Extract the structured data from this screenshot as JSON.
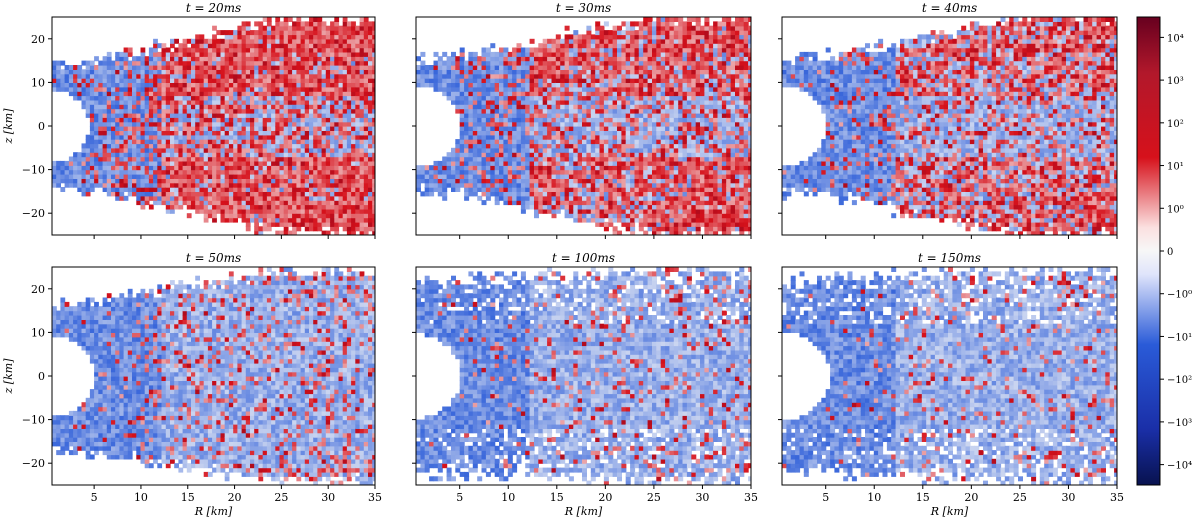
{
  "chart_data": [
    {
      "type": "heatmap",
      "title": "t = 20ms",
      "xlabel": "",
      "ylabel": "z [km]",
      "xlim": [
        0.5,
        35
      ],
      "ylim": [
        -25,
        25
      ],
      "xticks": [
        5,
        10,
        15,
        20,
        25,
        30,
        35
      ],
      "yticks": [
        20,
        10,
        0,
        -10,
        -20
      ],
      "ytick_labels": [
        "20",
        "10",
        "0",
        "−10",
        "−20"
      ],
      "show_ytick_labels": true,
      "show_xtick_labels": false,
      "pattern": {
        "core_radius": 4.5,
        "outer_extent_inner": 14,
        "outer_extent_outer": 24.5,
        "red_fraction": 0.55,
        "red_lobe": true
      }
    },
    {
      "type": "heatmap",
      "title": "t = 30ms",
      "xlabel": "",
      "ylabel": "",
      "xlim": [
        0.5,
        35
      ],
      "ylim": [
        -25,
        25
      ],
      "xticks": [
        5,
        10,
        15,
        20,
        25,
        30,
        35
      ],
      "yticks": [
        20,
        10,
        0,
        -10,
        -20
      ],
      "ytick_labels": [
        "20",
        "10",
        "0",
        "−10",
        "−20"
      ],
      "show_ytick_labels": false,
      "show_xtick_labels": false,
      "pattern": {
        "core_radius": 5.0,
        "outer_extent_inner": 15,
        "outer_extent_outer": 25,
        "red_fraction": 0.4,
        "red_lobe": true
      }
    },
    {
      "type": "heatmap",
      "title": "t = 40ms",
      "xlabel": "",
      "ylabel": "",
      "xlim": [
        0.5,
        35
      ],
      "ylim": [
        -25,
        25
      ],
      "xticks": [
        5,
        10,
        15,
        20,
        25,
        30,
        35
      ],
      "yticks": [
        20,
        10,
        0,
        -10,
        -20
      ],
      "ytick_labels": [
        "20",
        "10",
        "0",
        "−10",
        "−20"
      ],
      "show_ytick_labels": false,
      "show_xtick_labels": false,
      "pattern": {
        "core_radius": 5.0,
        "outer_extent_inner": 15,
        "outer_extent_outer": 25,
        "red_fraction": 0.3,
        "red_lobe": true
      }
    },
    {
      "type": "heatmap",
      "title": "t = 50ms",
      "xlabel": "R [km]",
      "ylabel": "z [km]",
      "xlim": [
        0.5,
        35
      ],
      "ylim": [
        -25,
        25
      ],
      "xticks": [
        5,
        10,
        15,
        20,
        25,
        30,
        35
      ],
      "yticks": [
        20,
        10,
        0,
        -10,
        -20
      ],
      "ytick_labels": [
        "20",
        "10",
        "0",
        "−10",
        "−20"
      ],
      "show_ytick_labels": true,
      "show_xtick_labels": true,
      "pattern": {
        "core_radius": 5.0,
        "outer_extent_inner": 17,
        "outer_extent_outer": 24,
        "red_fraction": 0.2,
        "red_lobe": false
      }
    },
    {
      "type": "heatmap",
      "title": "t = 100ms",
      "xlabel": "R [km]",
      "ylabel": "",
      "xlim": [
        0.5,
        35
      ],
      "ylim": [
        -25,
        25
      ],
      "xticks": [
        5,
        10,
        15,
        20,
        25,
        30,
        35
      ],
      "yticks": [
        20,
        10,
        0,
        -10,
        -20
      ],
      "ytick_labels": [
        "20",
        "10",
        "0",
        "−10",
        "−20"
      ],
      "show_ytick_labels": false,
      "show_xtick_labels": true,
      "pattern": {
        "core_radius": 5.2,
        "outer_extent_inner": 22,
        "outer_extent_outer": 24,
        "red_fraction": 0.12,
        "red_lobe": false
      }
    },
    {
      "type": "heatmap",
      "title": "t = 150ms",
      "xlabel": "R [km]",
      "ylabel": "",
      "xlim": [
        0.5,
        35
      ],
      "ylim": [
        -25,
        25
      ],
      "xticks": [
        5,
        10,
        15,
        20,
        25,
        30,
        35
      ],
      "yticks": [
        20,
        10,
        0,
        -10,
        -20
      ],
      "ytick_labels": [
        "20",
        "10",
        "0",
        "−10",
        "−20"
      ],
      "show_ytick_labels": false,
      "show_xtick_labels": true,
      "pattern": {
        "core_radius": 5.5,
        "outer_extent_inner": 22,
        "outer_extent_outer": 24,
        "red_fraction": 0.1,
        "red_lobe": false
      }
    }
  ],
  "colorbar": {
    "scale": "symlog",
    "range": [
      -30000,
      30000
    ],
    "tick_labels": [
      "10⁴",
      "10³",
      "10²",
      "10¹",
      "10⁰",
      "0",
      "−10⁰",
      "−10¹",
      "−10²",
      "−10³",
      "−10⁴"
    ],
    "tick_values": [
      10000,
      1000,
      100,
      10,
      1,
      0,
      -1,
      -10,
      -100,
      -1000,
      -10000
    ],
    "colors": {
      "max": "#67001f",
      "pos": "#d6111b",
      "zero": "#f7f7f7",
      "neg": "#2a5bd8",
      "min": "#08124f"
    }
  }
}
